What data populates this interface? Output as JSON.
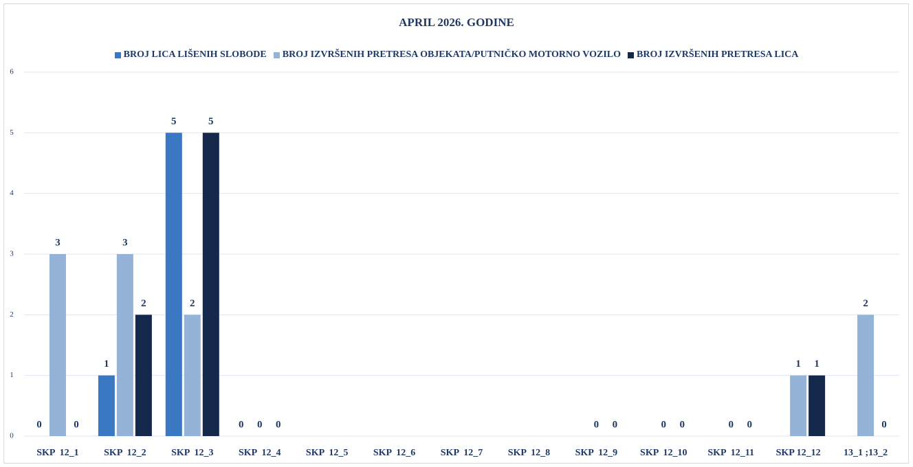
{
  "chart_data": {
    "type": "bar",
    "title": "APRIL 2026. GODINE",
    "categories": [
      "SKP  12_1",
      "SKP  12_2",
      "SKP  12_3",
      "SKP  12_4",
      "SKP  12_5",
      "SKP  12_6",
      "SKP  12_7",
      "SKP  12_8",
      "SKP  12_9",
      "SKP  12_10",
      "SKP  12_11",
      "SKP 12_12",
      "13_1 ;13_2"
    ],
    "series": [
      {
        "name": "BROJ LICA LIŠENIH SLOBODE",
        "color": "#3a78c4",
        "values": [
          0,
          1,
          5,
          0,
          null,
          null,
          null,
          null,
          null,
          null,
          null,
          null,
          null
        ]
      },
      {
        "name": "BROJ IZVRŠENIH PRETRESA OBJEKATA/PUTNIČKO MOTORNO VOZILO",
        "color": "#95b3d7",
        "values": [
          3,
          3,
          2,
          0,
          null,
          null,
          null,
          null,
          0,
          0,
          0,
          1,
          2
        ]
      },
      {
        "name": "BROJ IZVRŠENIH PRETRESA LICA",
        "color": "#13284a",
        "values": [
          0,
          2,
          5,
          0,
          null,
          null,
          null,
          null,
          0,
          0,
          0,
          1,
          0
        ]
      }
    ],
    "ylim": [
      0,
      6
    ],
    "yticks": [
      0,
      1,
      2,
      3,
      4,
      5,
      6
    ],
    "grid": true,
    "legend": "top"
  }
}
